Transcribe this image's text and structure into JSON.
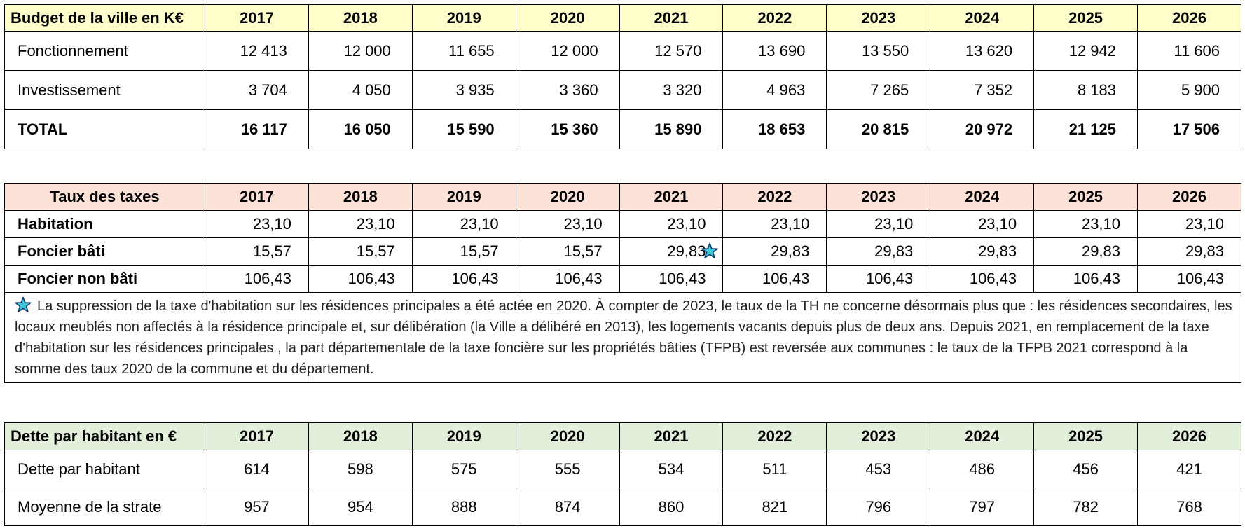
{
  "years": [
    "2017",
    "2018",
    "2019",
    "2020",
    "2021",
    "2022",
    "2023",
    "2024",
    "2025",
    "2026"
  ],
  "budget": {
    "title": "Budget de la ville en K€",
    "rows": [
      {
        "label": "Fonctionnement",
        "values": [
          "12 413",
          "12 000",
          "11 655",
          "12 000",
          "12 570",
          "13 690",
          "13 550",
          "13 620",
          "12 942",
          "11 606"
        ]
      },
      {
        "label": "Investissement",
        "values": [
          "3 704",
          "4 050",
          "3 935",
          "3 360",
          "3 320",
          "4 963",
          "7 265",
          "7 352",
          "8 183",
          "5 900"
        ]
      },
      {
        "label": "TOTAL",
        "values": [
          "16 117",
          "16 050",
          "15 590",
          "15 360",
          "15 890",
          "18 653",
          "20 815",
          "20 972",
          "21 125",
          "17 506"
        ]
      }
    ]
  },
  "taxes": {
    "title": "Taux des taxes",
    "rows": [
      {
        "label": "Habitation",
        "values": [
          "23,10",
          "23,10",
          "23,10",
          "23,10",
          "23,10",
          "23,10",
          "23,10",
          "23,10",
          "23,10",
          "23,10"
        ]
      },
      {
        "label": "Foncier bâti",
        "values": [
          "15,57",
          "15,57",
          "15,57",
          "15,57",
          "29,83",
          "29,83",
          "29,83",
          "29,83",
          "29,83",
          "29,83"
        ]
      },
      {
        "label": "Foncier non bâti",
        "values": [
          "106,43",
          "106,43",
          "106,43",
          "106,43",
          "106,43",
          "106,43",
          "106,43",
          "106,43",
          "106,43",
          "106,43"
        ]
      }
    ],
    "note": "La suppression de la taxe d'habitation sur les résidences principales a été actée en 2020. À compter de 2023, le taux de la TH ne concerne désormais plus que : les résidences secondaires, les locaux meublés non affectés à la résidence principale et, sur délibération (la Ville a délibéré en 2013), les logements vacants depuis plus de deux ans. Depuis 2021, en remplacement de la taxe d'habitation sur les résidences principales , la part départementale de la taxe foncière sur les propriétés bâties (TFPB) est reversée aux communes : le taux de la TFPB 2021 correspond à la somme des taux 2020 de la commune et du département."
  },
  "debt": {
    "title": "Dette par habitant en €",
    "rows": [
      {
        "label": "Dette par habitant",
        "values": [
          "614",
          "598",
          "575",
          "555",
          "534",
          "511",
          "453",
          "486",
          "456",
          "421"
        ]
      },
      {
        "label": "Moyenne de la strate",
        "values": [
          "957",
          "954",
          "888",
          "874",
          "860",
          "821",
          "796",
          "797",
          "782",
          "768"
        ]
      }
    ]
  },
  "colors": {
    "budget_header": "#ffffcc",
    "taxes_header": "#fde3d7",
    "debt_header": "#e2efda",
    "star": "#3cc5d8"
  },
  "icons": {
    "footnote": "star-icon"
  }
}
